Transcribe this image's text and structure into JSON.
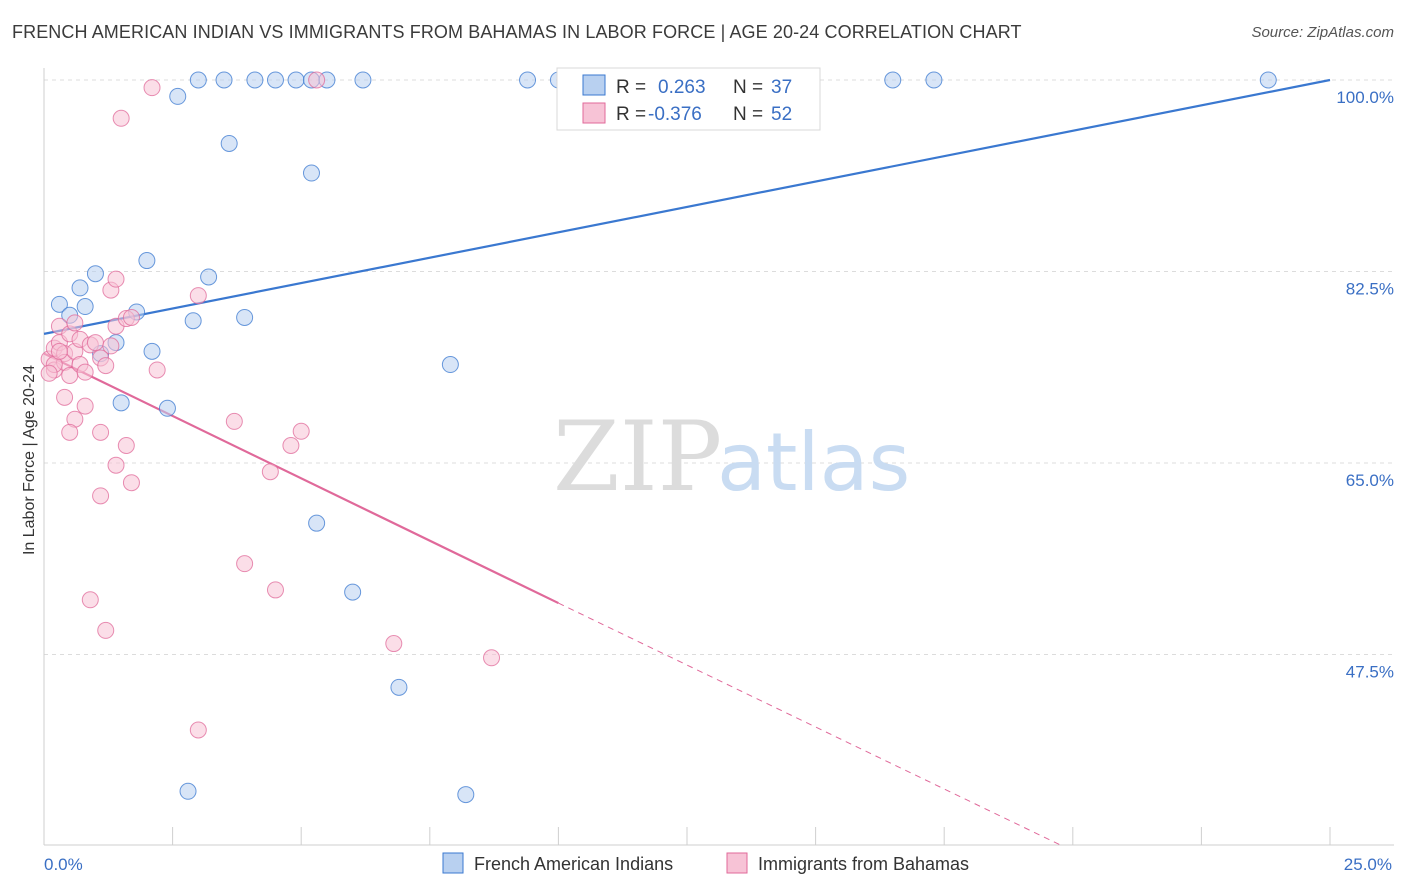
{
  "header": {
    "title": "FRENCH AMERICAN INDIAN VS IMMIGRANTS FROM BAHAMAS IN LABOR FORCE | AGE 20-24 CORRELATION CHART",
    "source": "Source: ZipAtlas.com"
  },
  "watermark": {
    "zip": "ZIP",
    "atlas": "atlas"
  },
  "colors": {
    "blue": "#3a78d0",
    "blue_fill": "#b8d0f0",
    "pink": "#e0699a",
    "pink_fill": "#f7c3d6",
    "grid": "#dcdcdc"
  },
  "legend": {
    "r_label": "R =",
    "n_label": "N =",
    "rows": [
      {
        "r": "0.263",
        "n": "37"
      },
      {
        "r": "-0.376",
        "n": "52"
      }
    ]
  },
  "chart_data": {
    "type": "scatter",
    "ylabel": "In Labor Force | Age 20-24",
    "xlim": [
      0,
      25
    ],
    "ylim": [
      30,
      102
    ],
    "x_ticks": [
      0,
      2.5,
      5,
      7.5,
      10,
      12.5,
      15,
      17.5,
      20,
      22.5,
      25
    ],
    "x_tick_labels": [
      {
        "value": 0,
        "label": "0.0%"
      },
      {
        "value": 25,
        "label": "25.0%"
      }
    ],
    "y_tick_labels": [
      {
        "value": 100,
        "label": "100.0%"
      },
      {
        "value": 82.5,
        "label": "82.5%"
      },
      {
        "value": 65,
        "label": "65.0%"
      },
      {
        "value": 47.5,
        "label": "47.5%"
      }
    ],
    "grid": true,
    "series": [
      {
        "name": "French American Indians",
        "points": [
          [
            0.3,
            79.5
          ],
          [
            0.5,
            78.5
          ],
          [
            0.8,
            79.3
          ],
          [
            1.0,
            82.3
          ],
          [
            0.7,
            81.0
          ],
          [
            1.4,
            76.0
          ],
          [
            1.1,
            75.0
          ],
          [
            1.8,
            78.8
          ],
          [
            2.0,
            83.5
          ],
          [
            2.1,
            75.2
          ],
          [
            1.5,
            70.5
          ],
          [
            2.4,
            70.0
          ],
          [
            2.6,
            98.5
          ],
          [
            3.0,
            100.0
          ],
          [
            3.5,
            100.0
          ],
          [
            4.1,
            100.0
          ],
          [
            4.5,
            100.0
          ],
          [
            4.9,
            100.0
          ],
          [
            5.2,
            100.0
          ],
          [
            5.5,
            100.0
          ],
          [
            6.2,
            100.0
          ],
          [
            9.4,
            100.0
          ],
          [
            10.0,
            100.0
          ],
          [
            16.5,
            100.0
          ],
          [
            17.3,
            100.0
          ],
          [
            23.8,
            100.0
          ],
          [
            3.6,
            94.2
          ],
          [
            5.2,
            91.5
          ],
          [
            2.9,
            78.0
          ],
          [
            3.2,
            82.0
          ],
          [
            3.9,
            78.3
          ],
          [
            7.9,
            74.0
          ],
          [
            5.3,
            59.5
          ],
          [
            6.0,
            53.2
          ],
          [
            6.9,
            44.5
          ],
          [
            2.8,
            35.0
          ],
          [
            8.2,
            34.7
          ]
        ]
      },
      {
        "name": "Immigrants from Bahamas",
        "points": [
          [
            0.1,
            74.5
          ],
          [
            0.2,
            73.5
          ],
          [
            0.2,
            75.5
          ],
          [
            0.3,
            76.0
          ],
          [
            0.3,
            77.5
          ],
          [
            0.4,
            75.0
          ],
          [
            0.4,
            74.2
          ],
          [
            0.5,
            73.0
          ],
          [
            0.5,
            76.8
          ],
          [
            0.6,
            77.8
          ],
          [
            0.6,
            75.2
          ],
          [
            0.7,
            74.0
          ],
          [
            0.7,
            76.3
          ],
          [
            0.8,
            73.3
          ],
          [
            0.9,
            75.8
          ],
          [
            1.0,
            76.0
          ],
          [
            1.1,
            74.6
          ],
          [
            1.2,
            73.9
          ],
          [
            1.3,
            75.7
          ],
          [
            1.4,
            77.5
          ],
          [
            1.6,
            78.2
          ],
          [
            1.7,
            78.3
          ],
          [
            1.3,
            80.8
          ],
          [
            1.4,
            81.8
          ],
          [
            2.2,
            73.5
          ],
          [
            3.0,
            80.3
          ],
          [
            0.4,
            71.0
          ],
          [
            0.8,
            70.2
          ],
          [
            0.6,
            69.0
          ],
          [
            0.5,
            67.8
          ],
          [
            1.1,
            67.8
          ],
          [
            1.6,
            66.6
          ],
          [
            1.4,
            64.8
          ],
          [
            1.1,
            62.0
          ],
          [
            1.7,
            63.2
          ],
          [
            2.1,
            99.3
          ],
          [
            1.5,
            96.5
          ],
          [
            5.3,
            100.0
          ],
          [
            3.7,
            68.8
          ],
          [
            4.8,
            66.6
          ],
          [
            5.0,
            67.9
          ],
          [
            4.4,
            64.2
          ],
          [
            3.9,
            55.8
          ],
          [
            4.5,
            53.4
          ],
          [
            0.9,
            52.5
          ],
          [
            1.2,
            49.7
          ],
          [
            6.8,
            48.5
          ],
          [
            8.7,
            47.2
          ],
          [
            3.0,
            40.6
          ],
          [
            0.2,
            74.0
          ],
          [
            0.3,
            75.2
          ],
          [
            0.1,
            73.2
          ]
        ]
      }
    ],
    "trend_lines": [
      {
        "series": "French American Indians",
        "from": [
          0,
          76.8
        ],
        "to": [
          25,
          100.0
        ],
        "style": "solid"
      },
      {
        "series": "Immigrants from Bahamas",
        "from": [
          0,
          75.0
        ],
        "to": [
          10,
          52.2
        ],
        "style": "solid"
      },
      {
        "series": "Immigrants from Bahamas",
        "from": [
          10,
          52.2
        ],
        "to": [
          19.8,
          30.0
        ],
        "style": "dashed"
      }
    ]
  }
}
